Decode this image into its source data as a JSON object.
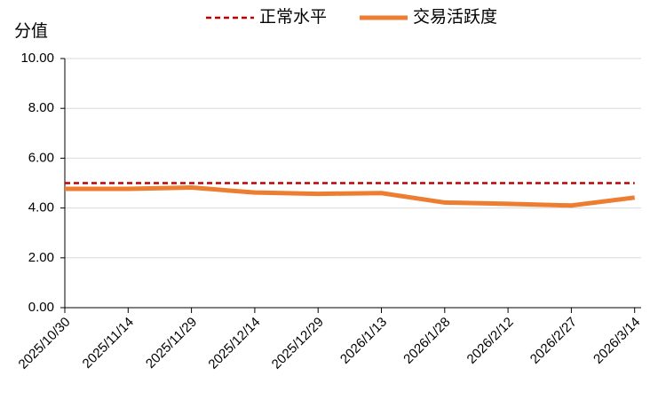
{
  "chart_data": {
    "type": "line",
    "y_label": "分值",
    "categories": [
      "2025/10/30",
      "2025/11/14",
      "2025/11/29",
      "2025/12/14",
      "2025/12/29",
      "2026/1/13",
      "2026/1/28",
      "2026/2/12",
      "2026/2/27",
      "2026/3/14"
    ],
    "series": [
      {
        "name": "正常水平",
        "color": "#C00000",
        "dash": true,
        "values": [
          5,
          5,
          5,
          5,
          5,
          5,
          5,
          5,
          5,
          5
        ]
      },
      {
        "name": "交易活跃度",
        "color": "#ED7D31",
        "dash": false,
        "values": [
          4.77,
          4.77,
          4.82,
          4.62,
          4.57,
          4.6,
          4.22,
          4.17,
          4.1,
          4.42
        ]
      }
    ],
    "ylim": [
      0,
      10
    ],
    "yticks": [
      {
        "value": 0,
        "label": "0.00"
      },
      {
        "value": 2,
        "label": "2.00"
      },
      {
        "value": 4,
        "label": "4.00"
      },
      {
        "value": 6,
        "label": "6.00"
      },
      {
        "value": 8,
        "label": "8.00"
      },
      {
        "value": 10,
        "label": "10.00"
      }
    ],
    "grid": true
  }
}
